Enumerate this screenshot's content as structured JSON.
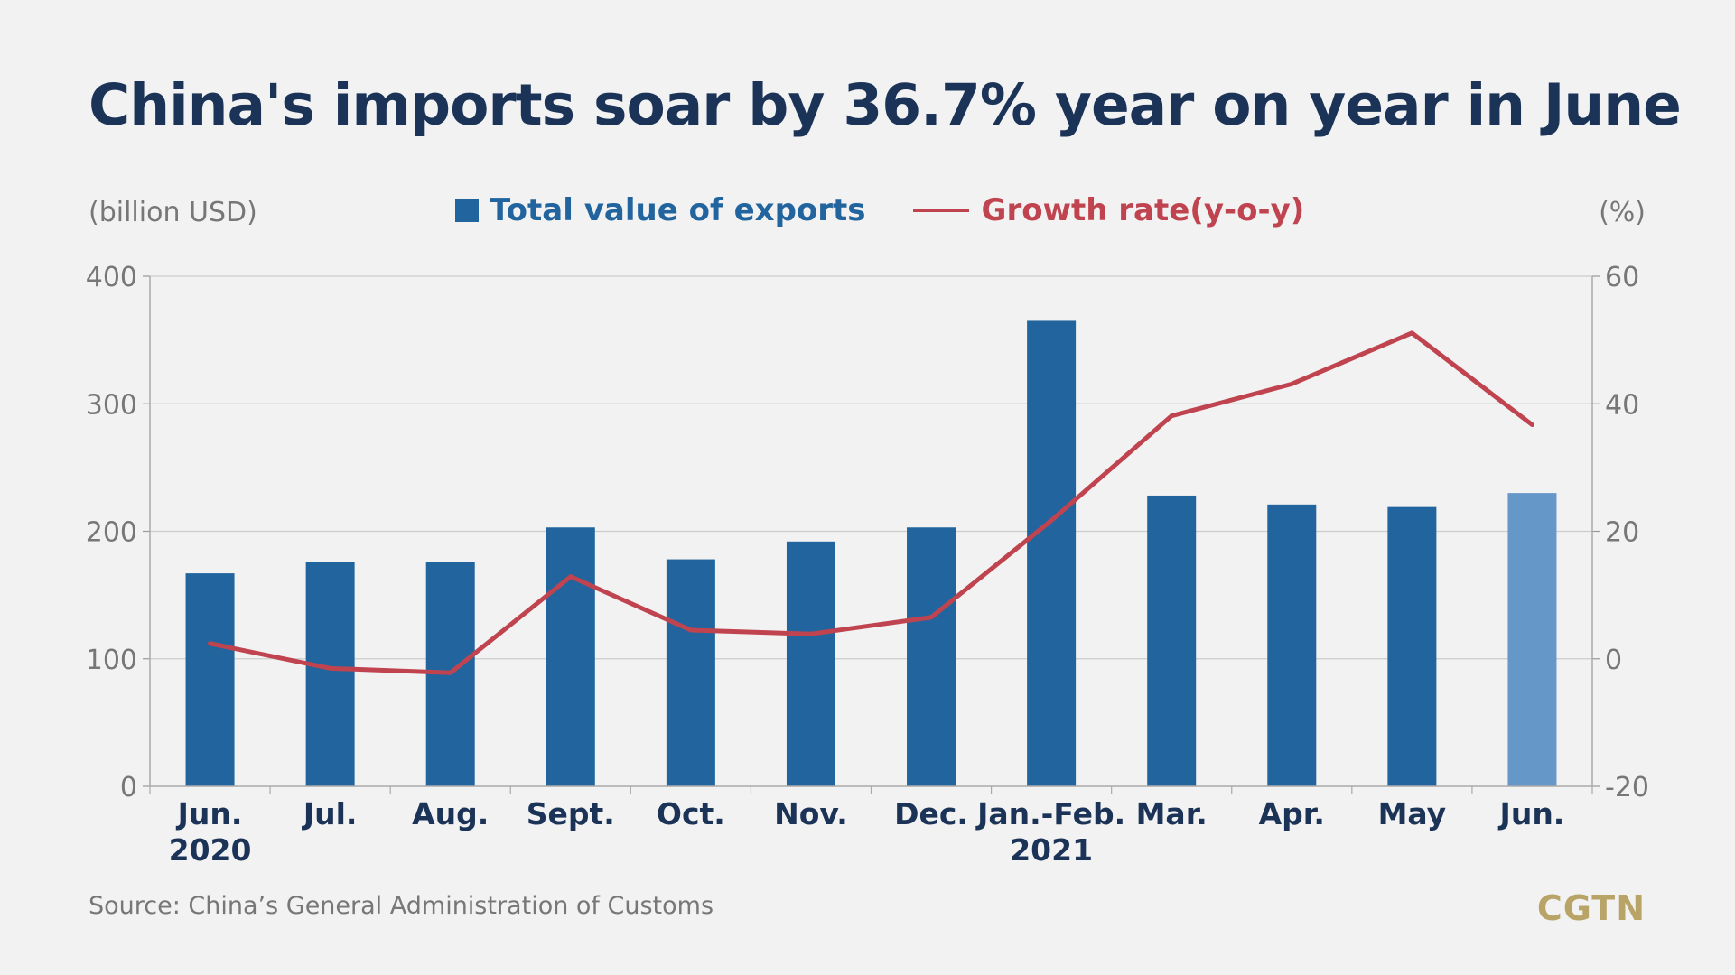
{
  "title": "China's imports soar by 36.7% year on year in June",
  "unit_left": "(billion USD)",
  "unit_right": "(%)",
  "legend": {
    "bar_label": "Total value of exports",
    "line_label": "Growth rate(y-o-y)"
  },
  "source": "Source: China’s General Administration of Customs",
  "logo": "CGTN",
  "colors": {
    "bar": "#21649e",
    "bar_highlight": "#6597c8",
    "line": "#c0444f",
    "title": "#1c3358",
    "tick": "#777777",
    "category": "#1c3358",
    "logo": "#b9a468"
  },
  "chart_data": {
    "type": "bar",
    "title": "China's imports soar by 36.7% year on year in June",
    "categories": [
      "Jun. 2020",
      "Jul.",
      "Aug.",
      "Sept.",
      "Oct.",
      "Nov.",
      "Dec.",
      "Jan.-Feb. 2021",
      "Mar.",
      "Apr.",
      "May",
      "Jun."
    ],
    "category_labels": [
      [
        "Jun.",
        "2020"
      ],
      [
        "Jul."
      ],
      [
        "Aug."
      ],
      [
        "Sept."
      ],
      [
        "Oct."
      ],
      [
        "Nov."
      ],
      [
        "Dec."
      ],
      [
        "Jan.-Feb.",
        "2021"
      ],
      [
        "Mar."
      ],
      [
        "Apr."
      ],
      [
        "May"
      ],
      [
        "Jun."
      ]
    ],
    "series": [
      {
        "name": "Total value of exports",
        "type": "bar",
        "axis": "left",
        "values": [
          167,
          176,
          176,
          203,
          178,
          192,
          203,
          365,
          228,
          221,
          219,
          230
        ],
        "highlight_index": 11
      },
      {
        "name": "Growth rate(y-o-y)",
        "type": "line",
        "axis": "right",
        "values": [
          2.4,
          -1.5,
          -2.2,
          12.9,
          4.5,
          3.9,
          6.5,
          21.7,
          38.1,
          43.1,
          51.1,
          36.7
        ]
      }
    ],
    "y_left": {
      "label": "(billion USD)",
      "ylim": [
        0,
        400
      ],
      "ticks": [
        0,
        100,
        200,
        300,
        400
      ]
    },
    "y_right": {
      "label": "(%)",
      "ylim": [
        -20,
        60
      ],
      "ticks": [
        -20,
        0,
        20,
        40,
        60
      ]
    },
    "grid": true,
    "legend_position": "top-center"
  }
}
